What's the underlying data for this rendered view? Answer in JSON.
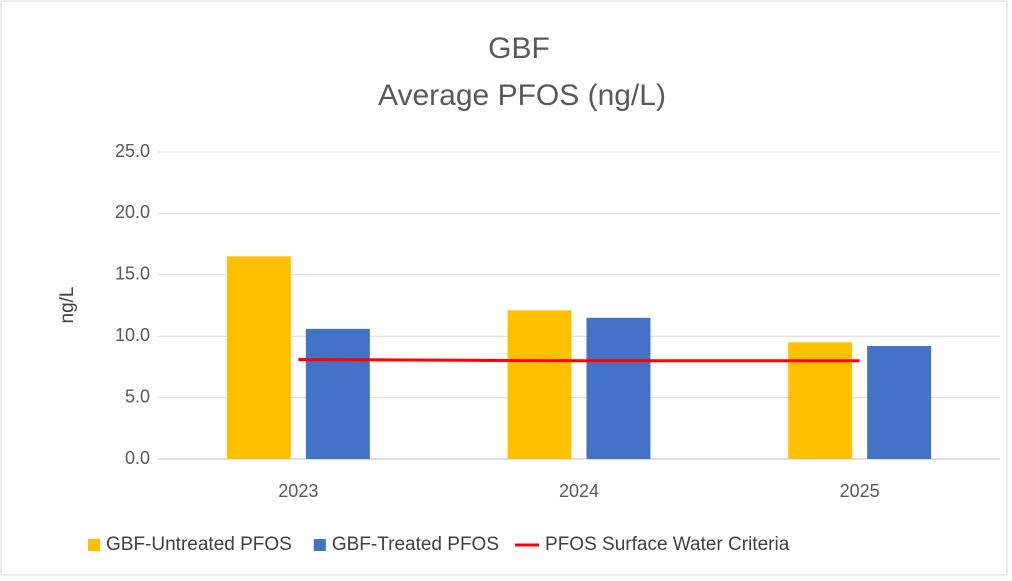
{
  "chart_data": {
    "type": "bar",
    "title": "GBF",
    "subtitle": "Average PFOS (ng/L)",
    "y_label": "ng/L",
    "categories": [
      "2023",
      "2024",
      "2025"
    ],
    "series": [
      {
        "name": "GBF-Untreated PFOS",
        "color": "#ffc000",
        "type": "bar",
        "values": [
          16.5,
          12.1,
          9.5
        ]
      },
      {
        "name": "GBF-Treated PFOS",
        "color": "#4472c4",
        "type": "bar",
        "values": [
          10.6,
          11.5,
          9.2
        ]
      },
      {
        "name": "PFOS Surface Water Criteria",
        "color": "#ff0000",
        "type": "line",
        "values": [
          8.1,
          8.0,
          8.0
        ]
      }
    ],
    "ylim": [
      0,
      25
    ],
    "yticks": [
      {
        "value": 0,
        "label": "0.0"
      },
      {
        "value": 5,
        "label": "5.0"
      },
      {
        "value": 10,
        "label": "10.0"
      },
      {
        "value": 15,
        "label": "15.0"
      },
      {
        "value": 20,
        "label": "20.0"
      },
      {
        "value": 25,
        "label": "25.0"
      }
    ],
    "grid": true,
    "legend": "bottom"
  }
}
